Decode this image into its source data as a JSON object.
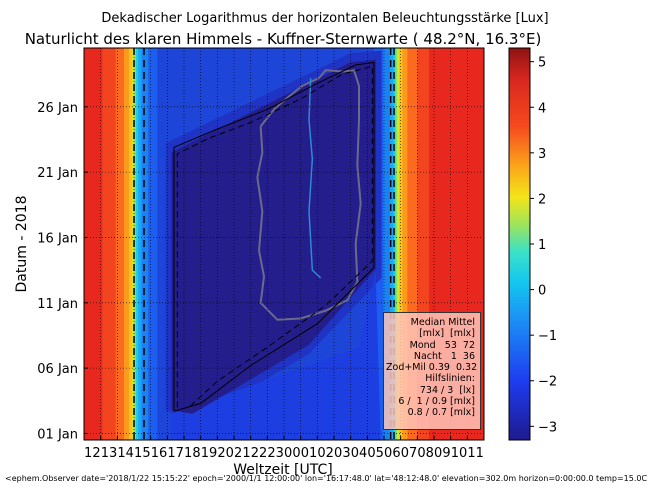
{
  "chart_data": {
    "type": "heatmap",
    "title": "Dekadischer Logarithmus der horizontalen Beleuchtungsstärke [Lux]",
    "subtitle": "Naturlicht des klaren Himmels - Kuffner-Sternwarte ( 48.2°N, 16.3°E)",
    "xlabel": "Weltzeit [UTC]",
    "ylabel": "Datum - 2018",
    "x_ticks": [
      "12",
      "13",
      "14",
      "15",
      "16",
      "17",
      "18",
      "19",
      "20",
      "21",
      "22",
      "23",
      "00",
      "01",
      "02",
      "03",
      "04",
      "05",
      "06",
      "07",
      "08",
      "09",
      "10",
      "11"
    ],
    "y_ticks": [
      "01 Jan",
      "06 Jan",
      "11 Jan",
      "16 Jan",
      "21 Jan",
      "26 Jan"
    ],
    "y_tick_values": [
      1,
      6,
      11,
      16,
      21,
      26
    ],
    "ylim": [
      0.5,
      30.5
    ],
    "xlim_hours": [
      12,
      36
    ],
    "colorbar": {
      "ticks": [
        "5",
        "4",
        "3",
        "2",
        "1",
        "0",
        "−1",
        "−2",
        "−3"
      ],
      "tick_values": [
        5,
        4,
        3,
        2,
        1,
        0,
        -1,
        -2,
        -3
      ],
      "range": [
        -3.3,
        5.3
      ]
    },
    "sunset_dashed_utc_start": 15.0,
    "sunset_dashed_utc_end": 15.6,
    "sunrise_dashed_utc_start": 6.4,
    "sunrise_dashed_utc_end": 6.6,
    "grid": true
  },
  "legend": {
    "lines": [
      "Median Mittel",
      "[mlx]  [mlx]",
      "Mond   53  72",
      "Nacht   1  36",
      "Zod+Mil 0.39  0.32",
      "Hilfslinien:",
      "734 / 3  [lx]",
      "6 /  1 / 0.9 [mlx]",
      "0.8 / 0.7 [mlx]"
    ]
  },
  "footer": "<ephem.Observer date='2018/1/22 15:15:22' epoch='2000/1/1 12:00:00' lon='16:17:48.0' lat='48:12:48.0' elevation=302.0m horizon=0:00:00.0 temp=15.0C pressure"
}
